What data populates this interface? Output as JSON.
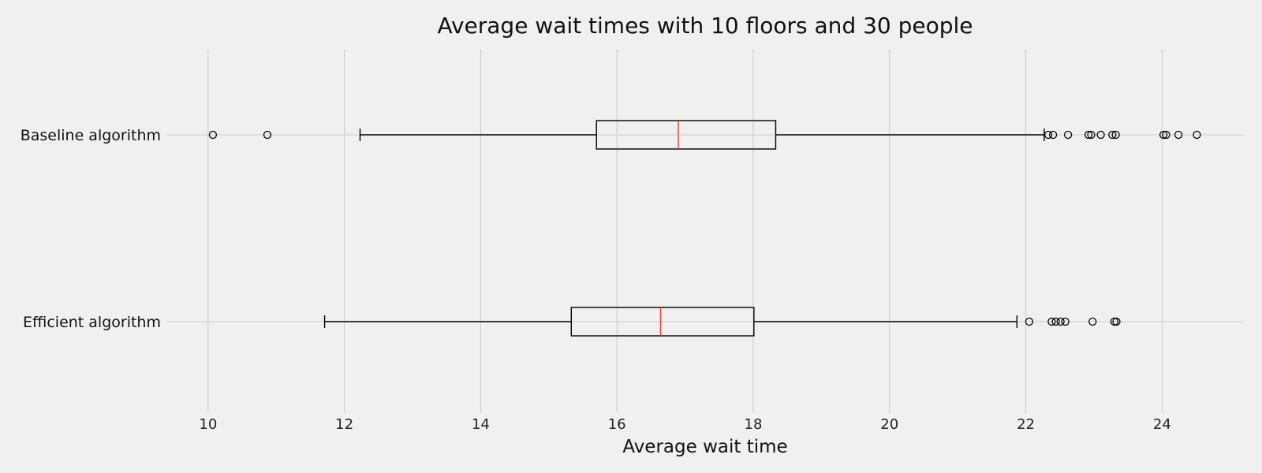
{
  "chart_data": {
    "type": "boxplot",
    "orientation": "horizontal",
    "title": "Average wait times with 10 floors and 30 people",
    "xlabel": "Average wait time",
    "ylabel": "",
    "xlim": [
      9.4,
      25.2
    ],
    "xticks": [
      10,
      12,
      14,
      16,
      18,
      20,
      22,
      24
    ],
    "grid": true,
    "colors": {
      "background": "#f0f0f0",
      "grid": "#cbcbcb",
      "box": "#000000",
      "median": "#e8412d"
    },
    "series": [
      {
        "name": "Baseline algorithm",
        "whisker_low": 12.23,
        "q1": 15.7,
        "median": 16.9,
        "q3": 18.33,
        "whisker_high": 22.27,
        "outliers": [
          10.07,
          10.87,
          22.33,
          22.4,
          22.62,
          22.92,
          22.96,
          23.1,
          23.27,
          23.32,
          24.02,
          24.06,
          24.24,
          24.51
        ]
      },
      {
        "name": "Efficient algorithm",
        "whisker_low": 11.71,
        "q1": 15.33,
        "median": 16.64,
        "q3": 18.01,
        "whisker_high": 21.87,
        "outliers": [
          22.05,
          22.38,
          22.44,
          22.51,
          22.58,
          22.98,
          23.3,
          23.33
        ]
      }
    ]
  }
}
